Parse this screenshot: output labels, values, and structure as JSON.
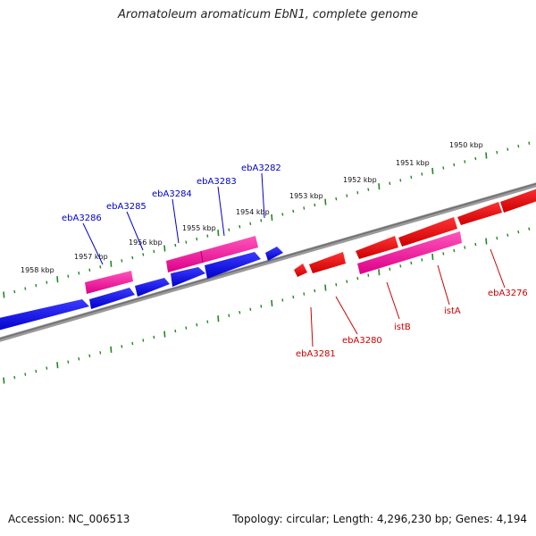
{
  "title": "Aromatoleum aromaticum EbN1, complete genome",
  "footer": {
    "accession": "Accession: NC_006513",
    "summary": "Topology: circular; Length: 4,296,230 bp; Genes: 4,194"
  },
  "ruler": {
    "outer_labels": [
      "1950 kbp",
      "1951 kbp",
      "1952 kbp",
      "1953 kbp",
      "1954 kbp",
      "1955 kbp",
      "1956 kbp",
      "1957 kbp",
      "1958 kbp"
    ]
  },
  "gene_labels": {
    "blue": [
      "ebA3286",
      "ebA3285",
      "ebA3284",
      "ebA3283",
      "ebA3282"
    ],
    "red": [
      "ebA3281",
      "ebA3280",
      "istB",
      "istA",
      "ebA3276"
    ]
  },
  "colors": {
    "blue_gene": "#0000ee",
    "pink_gene": "#ee1199",
    "red_gene": "#ee0000",
    "blue_label": "#0000cc",
    "red_label": "#cc0000",
    "tick": "#228822",
    "backbone": "#888888"
  }
}
